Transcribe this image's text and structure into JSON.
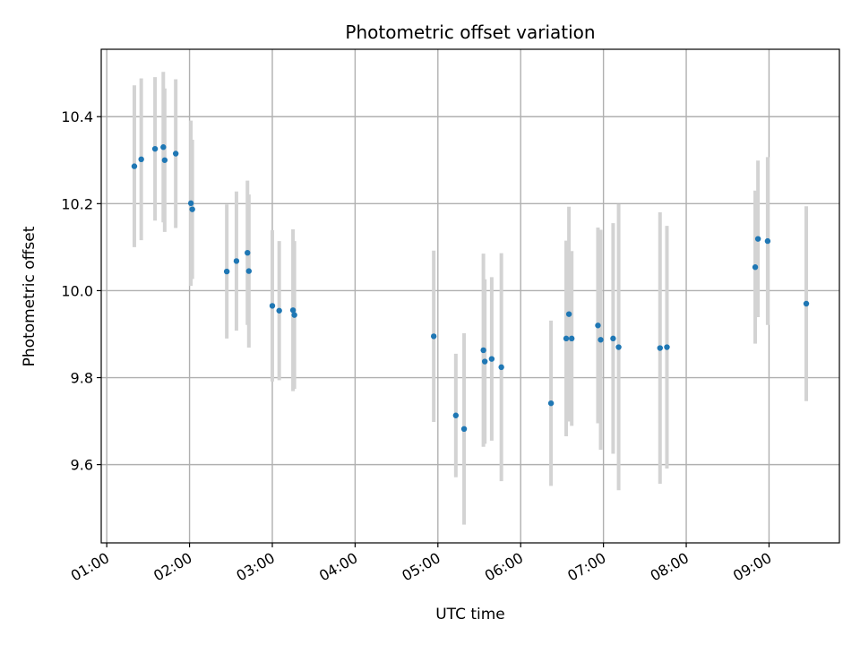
{
  "chart_data": {
    "type": "scatter",
    "title": "Photometric offset variation",
    "xlabel": "UTC time",
    "ylabel": "Photometric offset",
    "x_ticks": [
      "01:00",
      "02:00",
      "03:00",
      "04:00",
      "05:00",
      "06:00",
      "07:00",
      "08:00",
      "09:00"
    ],
    "y_ticks": [
      9.6,
      9.8,
      10.0,
      10.2,
      10.4
    ],
    "xlim": [
      "00:56",
      "09:51"
    ],
    "ylim": [
      9.42,
      10.555
    ],
    "grid": true,
    "point_color": "#1f77b4",
    "errorbar_color": "#d3d3d3",
    "points": [
      {
        "t": "01:20",
        "y": 10.286,
        "err": 0.186
      },
      {
        "t": "01:25",
        "y": 10.302,
        "err": 0.186
      },
      {
        "t": "01:35",
        "y": 10.326,
        "err": 0.165
      },
      {
        "t": "01:41",
        "y": 10.33,
        "err": 0.173
      },
      {
        "t": "01:42",
        "y": 10.3,
        "err": 0.165
      },
      {
        "t": "01:50",
        "y": 10.315,
        "err": 0.171
      },
      {
        "t": "02:01",
        "y": 10.201,
        "err": 0.19
      },
      {
        "t": "02:02",
        "y": 10.187,
        "err": 0.16
      },
      {
        "t": "02:27",
        "y": 10.044,
        "err": 0.154
      },
      {
        "t": "02:34",
        "y": 10.068,
        "err": 0.16
      },
      {
        "t": "02:42",
        "y": 10.087,
        "err": 0.166
      },
      {
        "t": "02:43",
        "y": 10.045,
        "err": 0.176
      },
      {
        "t": "03:00",
        "y": 9.965,
        "err": 0.174
      },
      {
        "t": "03:05",
        "y": 9.954,
        "err": 0.16
      },
      {
        "t": "03:15",
        "y": 9.955,
        "err": 0.186
      },
      {
        "t": "03:16",
        "y": 9.944,
        "err": 0.17
      },
      {
        "t": "04:57",
        "y": 9.895,
        "err": 0.197
      },
      {
        "t": "05:13",
        "y": 9.713,
        "err": 0.142
      },
      {
        "t": "05:19",
        "y": 9.682,
        "err": 0.22
      },
      {
        "t": "05:33",
        "y": 9.863,
        "err": 0.222
      },
      {
        "t": "05:34",
        "y": 9.837,
        "err": 0.189
      },
      {
        "t": "05:39",
        "y": 9.843,
        "err": 0.188
      },
      {
        "t": "05:46",
        "y": 9.824,
        "err": 0.262
      },
      {
        "t": "06:22",
        "y": 9.741,
        "err": 0.19
      },
      {
        "t": "06:33",
        "y": 9.89,
        "err": 0.225
      },
      {
        "t": "06:35",
        "y": 9.946,
        "err": 0.247
      },
      {
        "t": "06:37",
        "y": 9.89,
        "err": 0.201
      },
      {
        "t": "06:56",
        "y": 9.92,
        "err": 0.225
      },
      {
        "t": "06:58",
        "y": 9.887,
        "err": 0.253
      },
      {
        "t": "07:07",
        "y": 9.89,
        "err": 0.265
      },
      {
        "t": "07:11",
        "y": 9.87,
        "err": 0.329
      },
      {
        "t": "07:41",
        "y": 9.868,
        "err": 0.312
      },
      {
        "t": "07:46",
        "y": 9.87,
        "err": 0.279
      },
      {
        "t": "08:50",
        "y": 10.054,
        "err": 0.176
      },
      {
        "t": "08:52",
        "y": 10.119,
        "err": 0.18
      },
      {
        "t": "08:59",
        "y": 10.114,
        "err": 0.193
      },
      {
        "t": "09:27",
        "y": 9.97,
        "err": 0.224
      }
    ]
  }
}
